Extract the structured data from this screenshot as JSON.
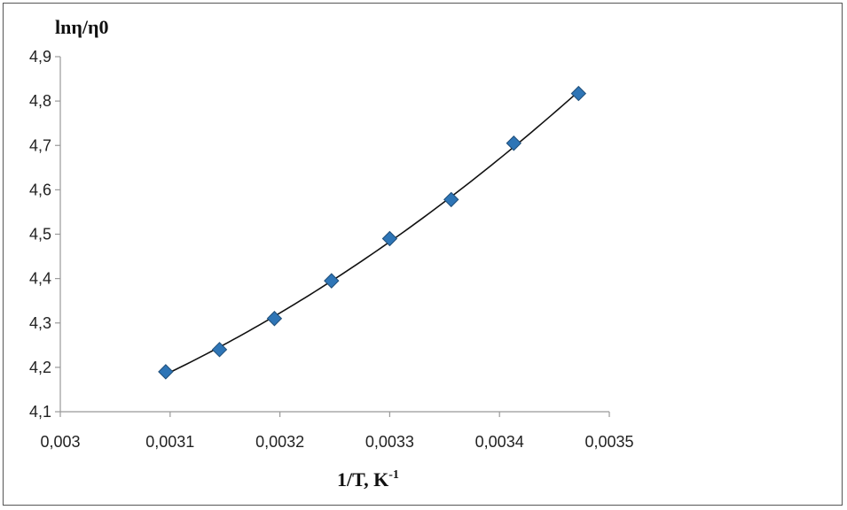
{
  "chart_data": {
    "type": "scatter",
    "ylabel": "lnη/η0",
    "xlabel_main": "1/T, K",
    "xlabel_sup": "-1",
    "xlim": [
      0.003,
      0.0035
    ],
    "ylim": [
      4.1,
      4.9
    ],
    "x_ticks": [
      "0,003",
      "0,0031",
      "0,0032",
      "0,0033",
      "0,0034",
      "0,0035"
    ],
    "y_ticks": [
      "4,1",
      "4,2",
      "4,3",
      "4,4",
      "4,5",
      "4,6",
      "4,7",
      "4,8",
      "4,9"
    ],
    "grid": false,
    "trendline": "polynomial",
    "marker_color": "#2E75B6",
    "line_color": "#111111",
    "series": [
      {
        "x": [
          0.003096,
          0.003145,
          0.003195,
          0.003247,
          0.0033,
          0.003356,
          0.003413,
          0.003472
        ],
        "y": [
          4.19,
          4.24,
          4.31,
          4.395,
          4.49,
          4.578,
          4.705,
          4.817
        ]
      }
    ]
  }
}
